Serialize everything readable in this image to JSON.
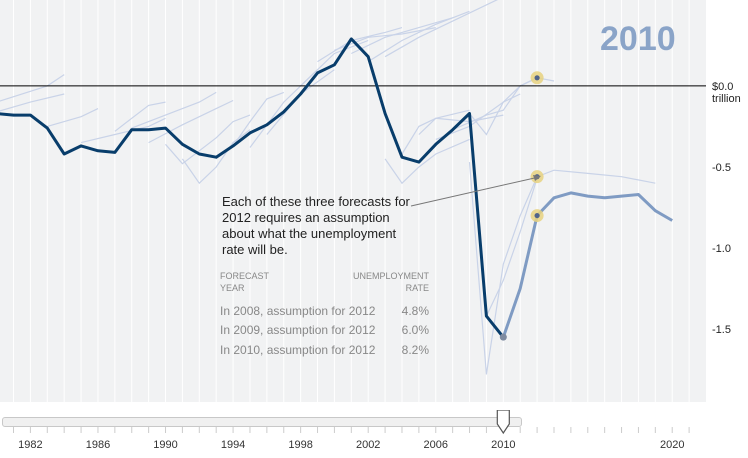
{
  "display_year": "2010",
  "annotation": "Each of these three forecasts for 2012 requires an assumption about what the unemployment rate will be.",
  "table": {
    "col1": [
      "FORECAST",
      "YEAR"
    ],
    "col2": [
      "UNEMPLOYMENT",
      "RATE"
    ],
    "rows": [
      {
        "label": "In 2008, assumption for 2012",
        "value": "4.8%"
      },
      {
        "label": "In 2009, assumption for 2012",
        "value": "6.0%"
      },
      {
        "label": "In 2010, assumption for 2012",
        "value": "8.2%"
      }
    ]
  },
  "slider": {
    "value": 2010
  },
  "chart_data": {
    "type": "line",
    "xlim": [
      1980.2,
      2022
    ],
    "ylim": [
      -1.95,
      0.53
    ],
    "x_ticks": [
      "1982",
      "1986",
      "1990",
      "1994",
      "1998",
      "2002",
      "2006",
      "2010",
      "2020"
    ],
    "y_ticks": [
      {
        "value": 0.0,
        "label": "$0.0",
        "sublabel": "trillion"
      },
      {
        "value": -0.5,
        "label": "-0.5"
      },
      {
        "value": -1.0,
        "label": "-1.0"
      },
      {
        "value": -1.5,
        "label": "-1.5"
      }
    ],
    "colors": {
      "actual": "#083d6b",
      "projection": "#7f9bc3",
      "past_forecasts": "#c9d3e8",
      "zero_line": "#000000",
      "marker_ring": "#e7d27f"
    },
    "series": [
      {
        "role": "actual",
        "x": [
          1980,
          1981,
          1982,
          1983,
          1984,
          1985,
          1986,
          1987,
          1988,
          1989,
          1990,
          1991,
          1992,
          1993,
          1994,
          1995,
          1996,
          1997,
          1998,
          1999,
          2000,
          2001,
          2002,
          2003,
          2004,
          2005,
          2006,
          2007,
          2008,
          2009,
          2010
        ],
        "values": [
          -0.17,
          -0.18,
          -0.18,
          -0.26,
          -0.42,
          -0.37,
          -0.4,
          -0.41,
          -0.27,
          -0.27,
          -0.26,
          -0.36,
          -0.42,
          -0.44,
          -0.37,
          -0.29,
          -0.24,
          -0.16,
          -0.05,
          0.08,
          0.13,
          0.29,
          0.18,
          -0.17,
          -0.44,
          -0.47,
          -0.36,
          -0.27,
          -0.17,
          -1.42,
          -1.55
        ]
      },
      {
        "role": "projection",
        "x": [
          2010,
          2011,
          2012,
          2013,
          2014,
          2015,
          2016,
          2017,
          2018,
          2019,
          2020
        ],
        "values": [
          -1.55,
          -1.25,
          -0.8,
          -0.69,
          -0.66,
          -0.68,
          -0.69,
          -0.68,
          -0.67,
          -0.77,
          -0.83
        ]
      },
      {
        "role": "past_forecasts",
        "x": [
          1980,
          1983,
          1984
        ],
        "values": [
          -0.1,
          0.0,
          0.07
        ]
      },
      {
        "role": "past_forecasts",
        "x": [
          1980,
          1982,
          1984
        ],
        "values": [
          -0.16,
          -0.1,
          -0.05
        ]
      },
      {
        "role": "past_forecasts",
        "x": [
          1983,
          1985,
          1986
        ],
        "values": [
          -0.25,
          -0.19,
          -0.14
        ]
      },
      {
        "role": "past_forecasts",
        "x": [
          1985,
          1987,
          1989,
          1990
        ],
        "values": [
          -0.35,
          -0.3,
          -0.25,
          -0.2
        ]
      },
      {
        "role": "past_forecasts",
        "x": [
          1987,
          1988,
          1989,
          1990
        ],
        "values": [
          -0.28,
          -0.2,
          -0.12,
          -0.1
        ]
      },
      {
        "role": "past_forecasts",
        "x": [
          1988,
          1990,
          1992,
          1993
        ],
        "values": [
          -0.26,
          -0.18,
          -0.1,
          -0.04
        ]
      },
      {
        "role": "past_forecasts",
        "x": [
          1989,
          1991,
          1993,
          1994
        ],
        "values": [
          -0.35,
          -0.24,
          -0.14,
          -0.09
        ]
      },
      {
        "role": "past_forecasts",
        "x": [
          1990,
          1991,
          1992,
          1993,
          1994,
          1995
        ],
        "values": [
          -0.36,
          -0.48,
          -0.4,
          -0.32,
          -0.22,
          -0.18
        ]
      },
      {
        "role": "past_forecasts",
        "x": [
          1991,
          1992,
          1993,
          1994,
          1995
        ],
        "values": [
          -0.45,
          -0.6,
          -0.5,
          -0.35,
          -0.27
        ]
      },
      {
        "role": "past_forecasts",
        "x": [
          1994,
          1995,
          1996,
          1997
        ],
        "values": [
          -0.37,
          -0.22,
          -0.08,
          -0.04
        ]
      },
      {
        "role": "past_forecasts",
        "x": [
          1995,
          1997,
          1998,
          1999
        ],
        "values": [
          -0.38,
          -0.1,
          0.0,
          0.1
        ]
      },
      {
        "role": "past_forecasts",
        "x": [
          1996,
          1998,
          2000
        ],
        "values": [
          -0.3,
          -0.05,
          0.1
        ]
      },
      {
        "role": "past_forecasts",
        "x": [
          1998,
          2000,
          2002
        ],
        "values": [
          0.0,
          0.2,
          0.28
        ]
      },
      {
        "role": "past_forecasts",
        "x": [
          1999,
          2001,
          2003,
          2004
        ],
        "values": [
          0.15,
          0.28,
          0.33,
          0.36
        ]
      },
      {
        "role": "past_forecasts",
        "x": [
          2000,
          2002,
          2004,
          2006
        ],
        "values": [
          0.22,
          0.3,
          0.32,
          0.36
        ]
      },
      {
        "role": "past_forecasts",
        "x": [
          2001,
          2003,
          2005,
          2007
        ],
        "values": [
          0.2,
          0.3,
          0.36,
          0.42
        ]
      },
      {
        "role": "past_forecasts",
        "x": [
          2002,
          2004,
          2006,
          2008
        ],
        "values": [
          0.15,
          0.28,
          0.38,
          0.46
        ]
      },
      {
        "role": "past_forecasts",
        "x": [
          2003,
          2005,
          2007,
          2010
        ],
        "values": [
          0.18,
          0.3,
          0.4,
          0.55
        ]
      },
      {
        "role": "past_forecasts",
        "x": [
          2003,
          2004,
          2005,
          2006,
          2008
        ],
        "values": [
          -0.45,
          -0.6,
          -0.5,
          -0.42,
          -0.33
        ]
      },
      {
        "role": "past_forecasts",
        "x": [
          2004,
          2005,
          2006,
          2008
        ],
        "values": [
          -0.42,
          -0.25,
          -0.2,
          -0.15
        ]
      },
      {
        "role": "past_forecasts",
        "x": [
          2005,
          2006,
          2008,
          2010
        ],
        "values": [
          -0.3,
          -0.2,
          -0.22,
          -0.18
        ]
      },
      {
        "role": "past_forecasts",
        "x": [
          2006,
          2008,
          2010,
          2011
        ],
        "values": [
          -0.33,
          -0.25,
          -0.1,
          -0.05
        ]
      },
      {
        "role": "past_forecasts",
        "x": [
          2007,
          2009,
          2010,
          2011,
          2012
        ],
        "values": [
          -0.27,
          -0.18,
          -0.15,
          0.0,
          0.05
        ]
      },
      {
        "role": "past_forecasts",
        "x": [
          2008,
          2009,
          2010,
          2011,
          2012,
          2013
        ],
        "values": [
          -0.17,
          -0.3,
          -0.1,
          0.0,
          0.05,
          0.03
        ]
      },
      {
        "role": "past_forecasts",
        "x": [
          2008,
          2009,
          2010,
          2011,
          2012
        ],
        "values": [
          -0.47,
          -1.78,
          -1.1,
          -0.8,
          -0.56
        ]
      },
      {
        "role": "past_forecasts",
        "x": [
          2009,
          2010,
          2011,
          2012
        ],
        "values": [
          -1.42,
          -1.2,
          -0.9,
          -0.57
        ]
      },
      {
        "role": "past_forecasts",
        "x": [
          2012,
          2013,
          2015,
          2017,
          2019
        ],
        "values": [
          -0.56,
          -0.52,
          -0.54,
          -0.56,
          -0.6
        ]
      }
    ],
    "highlight_points": [
      {
        "x": 2012,
        "y": 0.05
      },
      {
        "x": 2012,
        "y": -0.56
      },
      {
        "x": 2012,
        "y": -0.8
      }
    ],
    "actual_end_point": {
      "x": 2010,
      "y": -1.55
    }
  }
}
